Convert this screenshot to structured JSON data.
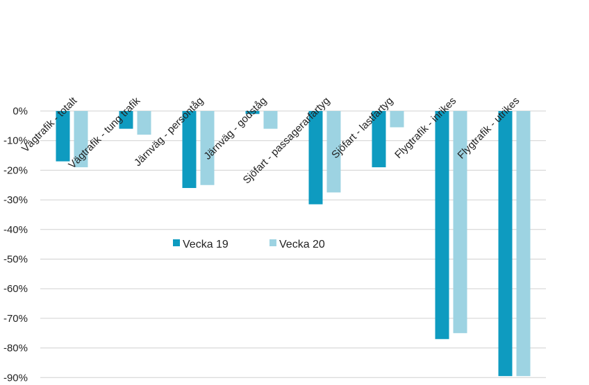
{
  "chart_data": {
    "type": "bar",
    "title": "",
    "xlabel": "",
    "ylabel": "",
    "categories": [
      "Vägtrafik - totalt",
      "Vägtrafik - tung trafik",
      "Järnväg - persontåg",
      "Järnväg - godståg",
      "Sjöfart - passagerarfartyg",
      "Sjöfart - lastfartyg",
      "Flygtrafik - inrikes",
      "Flygtrafik - utrikes"
    ],
    "series": [
      {
        "name": "Vecka 19",
        "color": "#0E9BC0",
        "values": [
          -17,
          -6,
          -26,
          -1,
          -31.5,
          -19,
          -77,
          -89.5
        ]
      },
      {
        "name": "Vecka 20",
        "color": "#9DD3E2",
        "values": [
          -19,
          -8,
          -25,
          -6,
          -27.5,
          -5.5,
          -75,
          -89.5
        ]
      }
    ],
    "ylim": [
      -90,
      0
    ],
    "yticks": [
      0,
      -10,
      -20,
      -30,
      -40,
      -50,
      -60,
      -70,
      -80,
      -90
    ],
    "ytick_labels": [
      "0%",
      "-10%",
      "-20%",
      "-30%",
      "-40%",
      "-50%",
      "-60%",
      "-70%",
      "-80%",
      "-90%"
    ],
    "grid": true,
    "legend_position": "center-left"
  }
}
